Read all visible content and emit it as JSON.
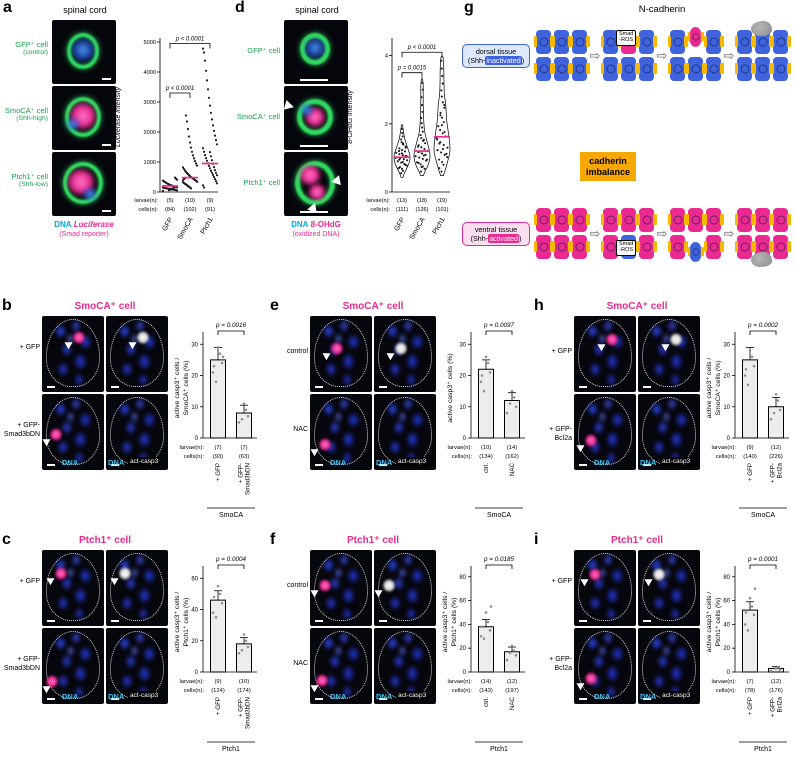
{
  "colors": {
    "magenta": "#ea2a90",
    "cyan": "#3fc6f2",
    "legend_blue": "#00a9e0",
    "green": "#18a04c",
    "dorsal_blue": "#3e63dd",
    "cadherin_yellow": "#f6b800",
    "imbalance_orange": "#f6a700"
  },
  "icons": {
    "stage_arrow": "⇨"
  },
  "panel_a": {
    "letter": "a",
    "header": "spinal cord",
    "rows": [
      {
        "l1": "GFP⁺ cell",
        "l2": "(control)"
      },
      {
        "l1": "SmoCA⁺ cell",
        "l2": "(Shh-high)"
      },
      {
        "l1": "Ptch1⁺ cell",
        "l2": "(Shh-low)"
      }
    ],
    "legend": {
      "dna": "DNA",
      "marker": "Luciferase",
      "sub": "(Smad reporter)"
    }
  },
  "panel_d": {
    "letter": "d",
    "header": "spinal cord",
    "rows": [
      {
        "l1": "GFP⁺ cell"
      },
      {
        "l1": "SmoCA⁺ cell"
      },
      {
        "l1": "Ptch1⁺ cell"
      }
    ],
    "legend": {
      "dna": "DNA",
      "marker": "8-OHdG",
      "sub": "(oxidized DNA)"
    }
  },
  "panel_g": {
    "letter": "g",
    "title": "N-cadherin",
    "dorsal": {
      "l1": "dorsal tissue",
      "l2pre": "(Shh-",
      "l2hl": "inactivated",
      "l2post": ")"
    },
    "ventral": {
      "l1": "ventral tissue",
      "l2pre": "(Shh-",
      "l2hl": "activated",
      "l2post": ")"
    },
    "imbalance": "cadherin\nimbalance",
    "smad": "Smad",
    "ros": "-ROS"
  },
  "image_panels": [
    {
      "letter": "b",
      "title": "SmoCA⁺ cell",
      "row_labels": [
        "+ GFP",
        "+ GFP-\nSmad3bDN"
      ],
      "bottom_labels": [
        "DNA",
        "DNA",
        "act-casp3"
      ],
      "chart": "b",
      "blobs": {
        "p0": [
          60,
          28
        ],
        "p1": [
          22,
          52
        ]
      }
    },
    {
      "letter": "c",
      "title": "Ptch1⁺ cell",
      "row_labels": [
        "+ GFP",
        "+ GFP-\nSmad3bDN"
      ],
      "bottom_labels": [
        "DNA",
        "DNA",
        "act-casp3"
      ],
      "chart": "c",
      "blobs": {
        "p0": [
          30,
          30
        ],
        "p1": [
          16,
          70
        ]
      }
    },
    {
      "letter": "e",
      "title": "SmoCA⁺ cell",
      "row_labels": [
        "control",
        "NAC"
      ],
      "bottom_labels": [
        "DNA",
        "DNA",
        "act-casp3"
      ],
      "chart": "e",
      "blobs": {
        "p0": [
          44,
          42
        ],
        "p1": [
          24,
          66
        ]
      }
    },
    {
      "letter": "f",
      "title": "Ptch1⁺ cell",
      "row_labels": [
        "control",
        "NAC"
      ],
      "bottom_labels": [
        "DNA",
        "DNA",
        "act-casp3"
      ],
      "chart": "f",
      "blobs": {
        "p0": [
          24,
          46
        ],
        "p1": [
          20,
          68
        ]
      }
    },
    {
      "letter": "h",
      "title": "SmoCA⁺ cell",
      "row_labels": [
        "+ GFP",
        "+ GFP-Bcl2a"
      ],
      "bottom_labels": [
        "DNA",
        "DNA",
        "act-casp3"
      ],
      "chart": "h",
      "blobs": {
        "p0": [
          62,
          30
        ],
        "p1": [
          28,
          60
        ]
      }
    },
    {
      "letter": "i",
      "title": "Ptch1⁺ cell",
      "row_labels": [
        "+ GFP",
        "+ GFP-Bcl2a"
      ],
      "bottom_labels": [
        "DNA",
        "DNA",
        "act-casp3"
      ],
      "chart": "i",
      "blobs": {
        "p0": [
          34,
          32
        ],
        "p1": [
          28,
          66
        ]
      }
    }
  ],
  "chart_data": [
    {
      "id": "a",
      "type": "scatter",
      "ylabel": "Luciferase intensity",
      "italic": true,
      "ylim": [
        0,
        5000
      ],
      "yticks": [
        0,
        1000,
        2000,
        3000,
        4000,
        5000
      ],
      "categories": [
        "GFP",
        "SmoCA",
        "Ptch1"
      ],
      "medians": [
        200,
        480,
        950
      ],
      "points": {
        "GFP": [
          40,
          55,
          65,
          70,
          78,
          85,
          90,
          95,
          100,
          105,
          110,
          118,
          125,
          132,
          140,
          150,
          158,
          168,
          178,
          190,
          200,
          212,
          225,
          240,
          255,
          272,
          290,
          310,
          332,
          355,
          380,
          410,
          445,
          480,
          150,
          120,
          95,
          88,
          75,
          62
        ],
        "SmoCA": [
          120,
          150,
          175,
          200,
          225,
          250,
          275,
          300,
          325,
          350,
          375,
          400,
          425,
          450,
          475,
          500,
          530,
          560,
          595,
          630,
          670,
          715,
          765,
          820,
          880,
          950,
          1030,
          1120,
          1220,
          1340,
          1480,
          1650,
          1850,
          2100,
          2350,
          2550,
          460,
          430,
          390,
          340
        ],
        "Ptch1": [
          150,
          220,
          290,
          360,
          430,
          500,
          570,
          640,
          710,
          790,
          870,
          950,
          1040,
          1130,
          1230,
          1340,
          1460,
          1590,
          1730,
          1880,
          2040,
          2220,
          2420,
          2640,
          2880,
          3140,
          3420,
          3720,
          4040,
          4380,
          4650,
          4780,
          560,
          640,
          730,
          830,
          940,
          1060,
          1190,
          1330
        ]
      },
      "pvals": [
        {
          "a": 0,
          "b": 1,
          "y": 3300,
          "label": "p < 0.0001"
        },
        {
          "a": 0,
          "b": 2,
          "y": 4950,
          "label": "p < 0.0001"
        }
      ],
      "counts": {
        "larvae_label": "larvae(n):",
        "cells_label": "cells(n):",
        "larvae": [
          "(5)",
          "(10)",
          "(9)"
        ],
        "cells": [
          "(84)",
          "(102)",
          "(91)"
        ]
      }
    },
    {
      "id": "d",
      "type": "violin",
      "ylabel": "8-OHdG intensity",
      "italic": false,
      "ylim": [
        0,
        4.4
      ],
      "yticks": [
        0,
        2,
        4
      ],
      "categories": [
        "GFP",
        "SmoCA",
        "Ptch1"
      ],
      "medians": [
        1.02,
        1.2,
        1.62
      ],
      "points": {
        "GFP": [
          0.55,
          0.62,
          0.68,
          0.73,
          0.78,
          0.82,
          0.86,
          0.9,
          0.93,
          0.96,
          0.99,
          1.02,
          1.05,
          1.08,
          1.11,
          1.15,
          1.19,
          1.23,
          1.28,
          1.33,
          1.39,
          1.46,
          1.54,
          1.63,
          1.73,
          1.85,
          0.7,
          0.8,
          0.88,
          0.95,
          1.0,
          1.06,
          1.13,
          1.2,
          1.3,
          1.42
        ],
        "SmoCA": [
          0.6,
          0.68,
          0.75,
          0.81,
          0.87,
          0.92,
          0.97,
          1.01,
          1.05,
          1.09,
          1.13,
          1.17,
          1.21,
          1.26,
          1.31,
          1.37,
          1.43,
          1.5,
          1.58,
          1.67,
          1.77,
          1.89,
          2.02,
          2.17,
          2.35,
          2.55,
          2.78,
          3.0,
          3.2,
          0.73,
          0.85,
          0.95,
          1.07,
          1.19,
          1.33,
          1.53
        ],
        "Ptch1": [
          0.6,
          0.7,
          0.8,
          0.88,
          0.95,
          1.02,
          1.09,
          1.16,
          1.23,
          1.3,
          1.38,
          1.46,
          1.54,
          1.63,
          1.72,
          1.82,
          1.93,
          2.05,
          2.18,
          2.32,
          2.47,
          2.63,
          2.8,
          2.98,
          3.18,
          3.4,
          3.62,
          3.85,
          1.12,
          1.26,
          1.42,
          1.58,
          1.76,
          1.96,
          2.25,
          2.55
        ]
      },
      "pvals": [
        {
          "a": 0,
          "b": 1,
          "y": 3.5,
          "label": "p = 0.0015"
        },
        {
          "a": 0,
          "b": 2,
          "y": 4.1,
          "label": "p < 0.0001"
        }
      ],
      "counts": {
        "larvae_label": "larvae(n):",
        "cells_label": "cells(n):",
        "larvae": [
          "(13)",
          "(18)",
          "(19)"
        ],
        "cells": [
          "(111)",
          "(126)",
          "(101)"
        ]
      }
    },
    {
      "id": "b",
      "type": "bar",
      "ylabel_lines": [
        "active casp3⁺ cells /",
        "SmoCA⁺ cells (%)"
      ],
      "ylim": [
        0,
        32
      ],
      "yticks": [
        0,
        10,
        20,
        30
      ],
      "categories": [
        [
          "+ GFP"
        ],
        [
          "+ GFP-",
          "Smad3bDN"
        ]
      ],
      "values": [
        25,
        8
      ],
      "errors": [
        4,
        2.5
      ],
      "dots": [
        [
          21,
          24,
          27,
          29,
          18,
          23,
          26
        ],
        [
          5,
          7,
          9,
          11,
          6
        ]
      ],
      "pval": "p = 0.0016",
      "group": "SmoCA",
      "counts": {
        "larvae_label": "larvae(n):",
        "cells_label": "cells(n):",
        "larvae": [
          "(7)",
          "(7)"
        ],
        "cells": [
          "(93)",
          "(63)"
        ]
      }
    },
    {
      "id": "c",
      "type": "bar",
      "ylabel_lines": [
        "active casp3⁺ cells /",
        "Ptch1⁺ cells (%)"
      ],
      "ylim": [
        0,
        64
      ],
      "yticks": [
        0,
        20,
        40,
        60
      ],
      "categories": [
        [
          "+ GFP"
        ],
        [
          "+ GFP-",
          "Smad3bDN"
        ]
      ],
      "values": [
        46,
        18
      ],
      "errors": [
        6,
        4
      ],
      "dots": [
        [
          38,
          44,
          50,
          55,
          35,
          48
        ],
        [
          12,
          16,
          20,
          24,
          14
        ]
      ],
      "pval": "p = 0.0004",
      "group": "Ptch1",
      "counts": {
        "larvae_label": "larvae(n):",
        "cells_label": "cells(n):",
        "larvae": [
          "(9)",
          "(10)"
        ],
        "cells": [
          "(124)",
          "(174)"
        ]
      }
    },
    {
      "id": "e",
      "type": "bar",
      "ylabel_lines": [
        "active casp3⁺ cells (%)"
      ],
      "ylim": [
        0,
        32
      ],
      "yticks": [
        0,
        10,
        20,
        30
      ],
      "categories": [
        [
          "ctrl."
        ],
        [
          "NAC"
        ]
      ],
      "values": [
        22,
        12
      ],
      "errors": [
        3,
        2.5
      ],
      "dots": [
        [
          18,
          21,
          24,
          26,
          15,
          20
        ],
        [
          8,
          10,
          13,
          15,
          11
        ]
      ],
      "pval": "p = 0.0097",
      "group": "SmoCA",
      "counts": {
        "larvae_label": "larvae(n):",
        "cells_label": "cells(n):",
        "larvae": [
          "(10)",
          "(14)"
        ],
        "cells": [
          "(134)",
          "(162)"
        ]
      }
    },
    {
      "id": "f",
      "type": "bar",
      "ylabel_lines": [
        "active casp3⁺ cells /",
        "Ptch1⁺ cells (%)"
      ],
      "ylim": [
        0,
        84
      ],
      "yticks": [
        0,
        20,
        40,
        60,
        80
      ],
      "categories": [
        [
          "ctrl."
        ],
        [
          "NAC"
        ]
      ],
      "values": [
        38,
        17
      ],
      "errors": [
        6,
        4
      ],
      "dots": [
        [
          30,
          35,
          42,
          50,
          28,
          38,
          55
        ],
        [
          10,
          14,
          18,
          22,
          16
        ]
      ],
      "pval": "p = 0.0185",
      "group": "Ptch1",
      "counts": {
        "larvae_label": "larvae(n):",
        "cells_label": "cells(n):",
        "larvae": [
          "(14)",
          "(12)"
        ],
        "cells": [
          "(143)",
          "(197)"
        ]
      }
    },
    {
      "id": "h",
      "type": "bar",
      "ylabel_lines": [
        "active casp3⁺ cells /",
        "SmoCA⁺ cells (%)"
      ],
      "ylim": [
        0,
        32
      ],
      "yticks": [
        0,
        10,
        20,
        30
      ],
      "categories": [
        [
          "+ GFP"
        ],
        [
          "+ GFP-",
          "Bcl2a"
        ]
      ],
      "values": [
        25,
        10
      ],
      "errors": [
        4,
        3
      ],
      "dots": [
        [
          20,
          23,
          26,
          28,
          17,
          22
        ],
        [
          6,
          9,
          12,
          14,
          8
        ]
      ],
      "pval": "p = 0.0002",
      "group": "SmoCA",
      "counts": {
        "larvae_label": "larvae(n):",
        "cells_label": "cells(n):",
        "larvae": [
          "(9)",
          "(12)"
        ],
        "cells": [
          "(140)",
          "(226)"
        ]
      }
    },
    {
      "id": "i",
      "type": "bar",
      "ylabel_lines": [
        "active casp3⁺ cells /",
        "Ptch1⁺ cells (%)"
      ],
      "ylim": [
        0,
        84
      ],
      "yticks": [
        0,
        20,
        40,
        60,
        80
      ],
      "categories": [
        [
          "+ GFP"
        ],
        [
          "+ GFP-",
          "Bcl2a"
        ]
      ],
      "values": [
        52,
        3
      ],
      "errors": [
        7,
        1.5
      ],
      "dots": [
        [
          40,
          48,
          55,
          62,
          35,
          50,
          70
        ],
        [
          1,
          2,
          4,
          3
        ]
      ],
      "pval": "p = 0.0001",
      "group": "Ptch1",
      "counts": {
        "larvae_label": "larvae(n):",
        "cells_label": "cells(n):",
        "larvae": [
          "(7)",
          "(12)"
        ],
        "cells": [
          "(78)",
          "(176)"
        ]
      }
    }
  ]
}
